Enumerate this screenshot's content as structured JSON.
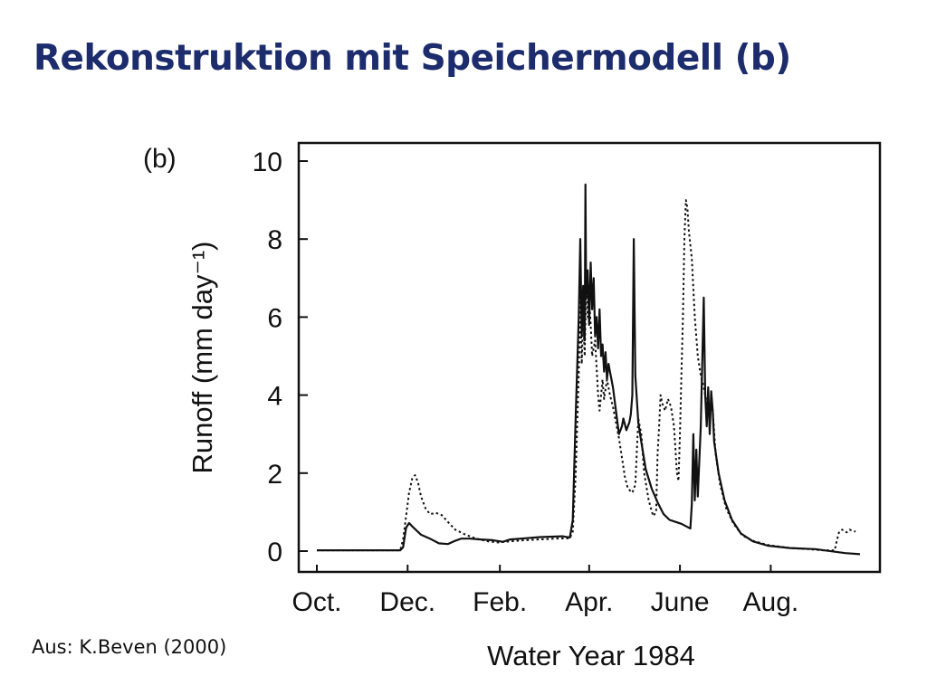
{
  "slide": {
    "title": "Rekonstruktion mit Speichermodell (b)",
    "source": "Aus: K.Beven (2000)",
    "title_color": "#1c2c6c"
  },
  "chart_data": {
    "type": "line",
    "panel_label": "(b)",
    "xlabel": "Water Year 1984",
    "ylabel": "Runoff (mm day⁻¹)",
    "ylim": [
      0,
      10
    ],
    "xlim": [
      0,
      365
    ],
    "y_ticks": [
      0,
      2,
      4,
      6,
      8,
      10
    ],
    "x_ticks": [
      {
        "label": "Oct.",
        "day": 0
      },
      {
        "label": "Dec.",
        "day": 61
      },
      {
        "label": "Feb.",
        "day": 123
      },
      {
        "label": "Apr.",
        "day": 183
      },
      {
        "label": "June",
        "day": 244
      },
      {
        "label": "Aug.",
        "day": 305
      }
    ],
    "grid": false,
    "series": [
      {
        "style": "solid",
        "color": "#111111",
        "points": [
          [
            0,
            0.02
          ],
          [
            30,
            0.02
          ],
          [
            56,
            0.02
          ],
          [
            58,
            0.1
          ],
          [
            60,
            0.6
          ],
          [
            62,
            0.72
          ],
          [
            65,
            0.6
          ],
          [
            70,
            0.42
          ],
          [
            76,
            0.32
          ],
          [
            82,
            0.2
          ],
          [
            88,
            0.18
          ],
          [
            92,
            0.25
          ],
          [
            97,
            0.32
          ],
          [
            103,
            0.32
          ],
          [
            110,
            0.3
          ],
          [
            118,
            0.28
          ],
          [
            125,
            0.24
          ],
          [
            130,
            0.3
          ],
          [
            140,
            0.33
          ],
          [
            150,
            0.36
          ],
          [
            165,
            0.38
          ],
          [
            170,
            0.35
          ],
          [
            172,
            0.8
          ],
          [
            174,
            3.5
          ],
          [
            176,
            6.0
          ],
          [
            177,
            8.0
          ],
          [
            178,
            5.5
          ],
          [
            179,
            6.8
          ],
          [
            180,
            5.4
          ],
          [
            180.5,
            9.4
          ],
          [
            181,
            6.5
          ],
          [
            182,
            7.2
          ],
          [
            183,
            5.8
          ],
          [
            184,
            7.4
          ],
          [
            185,
            6.2
          ],
          [
            186,
            7.0
          ],
          [
            187,
            5.5
          ],
          [
            188,
            6.0
          ],
          [
            189,
            5.2
          ],
          [
            190,
            6.2
          ],
          [
            191,
            5.0
          ],
          [
            192,
            5.3
          ],
          [
            193,
            4.6
          ],
          [
            194,
            5.1
          ],
          [
            195,
            4.4
          ],
          [
            196,
            4.8
          ],
          [
            197,
            4.6
          ],
          [
            199,
            4.2
          ],
          [
            201,
            3.6
          ],
          [
            203,
            3.0
          ],
          [
            205,
            3.2
          ],
          [
            206,
            3.4
          ],
          [
            208,
            3.1
          ],
          [
            210,
            3.3
          ],
          [
            211,
            3.5
          ],
          [
            212,
            4.0
          ],
          [
            213,
            8.0
          ],
          [
            214,
            4.5
          ],
          [
            216,
            3.3
          ],
          [
            218,
            2.8
          ],
          [
            221,
            2.1
          ],
          [
            225,
            1.6
          ],
          [
            229,
            1.25
          ],
          [
            233,
            0.95
          ],
          [
            237,
            0.8
          ],
          [
            241,
            0.75
          ],
          [
            245,
            0.7
          ],
          [
            249,
            0.62
          ],
          [
            251,
            0.58
          ],
          [
            252,
            1.2
          ],
          [
            253,
            3.0
          ],
          [
            254,
            1.3
          ],
          [
            255,
            2.6
          ],
          [
            256,
            1.4
          ],
          [
            258,
            3.2
          ],
          [
            260,
            6.5
          ],
          [
            261,
            4.0
          ],
          [
            262,
            3.2
          ],
          [
            263,
            4.2
          ],
          [
            264,
            3.0
          ],
          [
            265,
            4.1
          ],
          [
            266,
            3.6
          ],
          [
            267,
            2.8
          ],
          [
            270,
            2.0
          ],
          [
            274,
            1.3
          ],
          [
            279,
            0.8
          ],
          [
            285,
            0.45
          ],
          [
            293,
            0.25
          ],
          [
            303,
            0.14
          ],
          [
            318,
            0.08
          ],
          [
            335,
            0.05
          ],
          [
            355,
            -0.05
          ],
          [
            365,
            -0.08
          ]
        ]
      },
      {
        "style": "dotted",
        "color": "#111111",
        "points": [
          [
            0,
            0.02
          ],
          [
            30,
            0.02
          ],
          [
            56,
            0.02
          ],
          [
            58,
            0.3
          ],
          [
            60,
            0.9
          ],
          [
            62,
            1.5
          ],
          [
            64,
            1.85
          ],
          [
            66,
            1.95
          ],
          [
            68,
            1.75
          ],
          [
            70,
            1.4
          ],
          [
            73,
            1.1
          ],
          [
            76,
            0.95
          ],
          [
            80,
            0.98
          ],
          [
            84,
            0.92
          ],
          [
            88,
            0.75
          ],
          [
            93,
            0.55
          ],
          [
            100,
            0.42
          ],
          [
            107,
            0.32
          ],
          [
            115,
            0.25
          ],
          [
            122,
            0.22
          ],
          [
            130,
            0.25
          ],
          [
            140,
            0.28
          ],
          [
            150,
            0.3
          ],
          [
            160,
            0.32
          ],
          [
            170,
            0.33
          ],
          [
            172,
            0.5
          ],
          [
            174,
            2.0
          ],
          [
            176,
            4.5
          ],
          [
            177,
            6.5
          ],
          [
            178,
            4.8
          ],
          [
            179,
            6.0
          ],
          [
            180,
            5.0
          ],
          [
            181,
            6.8
          ],
          [
            182,
            6.0
          ],
          [
            183,
            6.5
          ],
          [
            184,
            5.8
          ],
          [
            185,
            5.0
          ],
          [
            187,
            5.4
          ],
          [
            189,
            4.0
          ],
          [
            190,
            3.6
          ],
          [
            191,
            4.0
          ],
          [
            192,
            4.4
          ],
          [
            193,
            3.9
          ],
          [
            195,
            4.4
          ],
          [
            197,
            4.0
          ],
          [
            199,
            3.7
          ],
          [
            201,
            3.3
          ],
          [
            203,
            2.9
          ],
          [
            205,
            2.4
          ],
          [
            207,
            1.9
          ],
          [
            209,
            1.6
          ],
          [
            212,
            1.5
          ],
          [
            214,
            1.7
          ],
          [
            216,
            3.4
          ],
          [
            218,
            3.0
          ],
          [
            220,
            2.0
          ],
          [
            223,
            1.3
          ],
          [
            226,
            0.9
          ],
          [
            228,
            1.0
          ],
          [
            229,
            2.5
          ],
          [
            230,
            3.2
          ],
          [
            231,
            4.0
          ],
          [
            232,
            3.8
          ],
          [
            234,
            3.6
          ],
          [
            236,
            3.9
          ],
          [
            238,
            3.7
          ],
          [
            240,
            3.2
          ],
          [
            242,
            2.0
          ],
          [
            243,
            1.8
          ],
          [
            244,
            3.0
          ],
          [
            245,
            4.5
          ],
          [
            246,
            6.0
          ],
          [
            247,
            8.0
          ],
          [
            248,
            9.0
          ],
          [
            249,
            8.8
          ],
          [
            250,
            8.2
          ],
          [
            252,
            7.5
          ],
          [
            254,
            6.0
          ],
          [
            256,
            5.0
          ],
          [
            258,
            4.5
          ],
          [
            260,
            4.2
          ],
          [
            262,
            3.8
          ],
          [
            264,
            3.8
          ],
          [
            266,
            3.6
          ],
          [
            268,
            2.5
          ],
          [
            271,
            1.7
          ],
          [
            275,
            1.1
          ],
          [
            280,
            0.7
          ],
          [
            286,
            0.4
          ],
          [
            294,
            0.25
          ],
          [
            304,
            0.15
          ],
          [
            318,
            0.08
          ],
          [
            330,
            0.05
          ],
          [
            340,
            0.02
          ],
          [
            348,
            0.02
          ],
          [
            349,
            0.2
          ],
          [
            350,
            0.35
          ],
          [
            351,
            0.5
          ],
          [
            353,
            0.55
          ],
          [
            356,
            0.48
          ],
          [
            358,
            0.55
          ],
          [
            362,
            0.5
          ]
        ]
      }
    ]
  }
}
